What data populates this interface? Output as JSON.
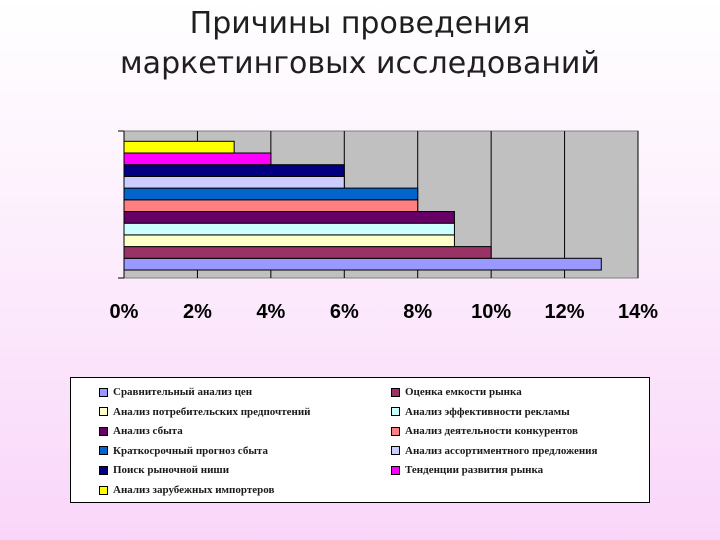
{
  "slide": {
    "title_line1": "Причины проведения",
    "title_line2": "маркетинговых исследований"
  },
  "chart_data": {
    "type": "bar",
    "orientation": "horizontal",
    "categories": [
      "Сравнительный анализ цен",
      "Оценка емкости рынка",
      "Анализ потребительских предпочтений",
      "Анализ эффективности рекламы",
      "Анализ сбыта",
      "Анализ деятельности конкурентов",
      "Краткосрочный прогноз сбыта",
      "Анализ ассортиментного предложения",
      "Поиск рыночной ниши",
      "Тенденции развития рынка",
      "Анализ зарубежных импортеров"
    ],
    "values": [
      13,
      10,
      9,
      9,
      9,
      8,
      8,
      6,
      6,
      4,
      3
    ],
    "colors": [
      "#9999ff",
      "#993366",
      "#ffffcc",
      "#ccffff",
      "#660066",
      "#ff8080",
      "#0066cc",
      "#ccccff",
      "#000080",
      "#ff00ff",
      "#ffff00"
    ],
    "xlim": [
      0,
      14
    ],
    "xticks": [
      "0%",
      "2%",
      "4%",
      "6%",
      "8%",
      "10%",
      "12%",
      "14%"
    ],
    "grid": true,
    "plot_background": "#c0c0c0",
    "legend_position": "bottom"
  }
}
